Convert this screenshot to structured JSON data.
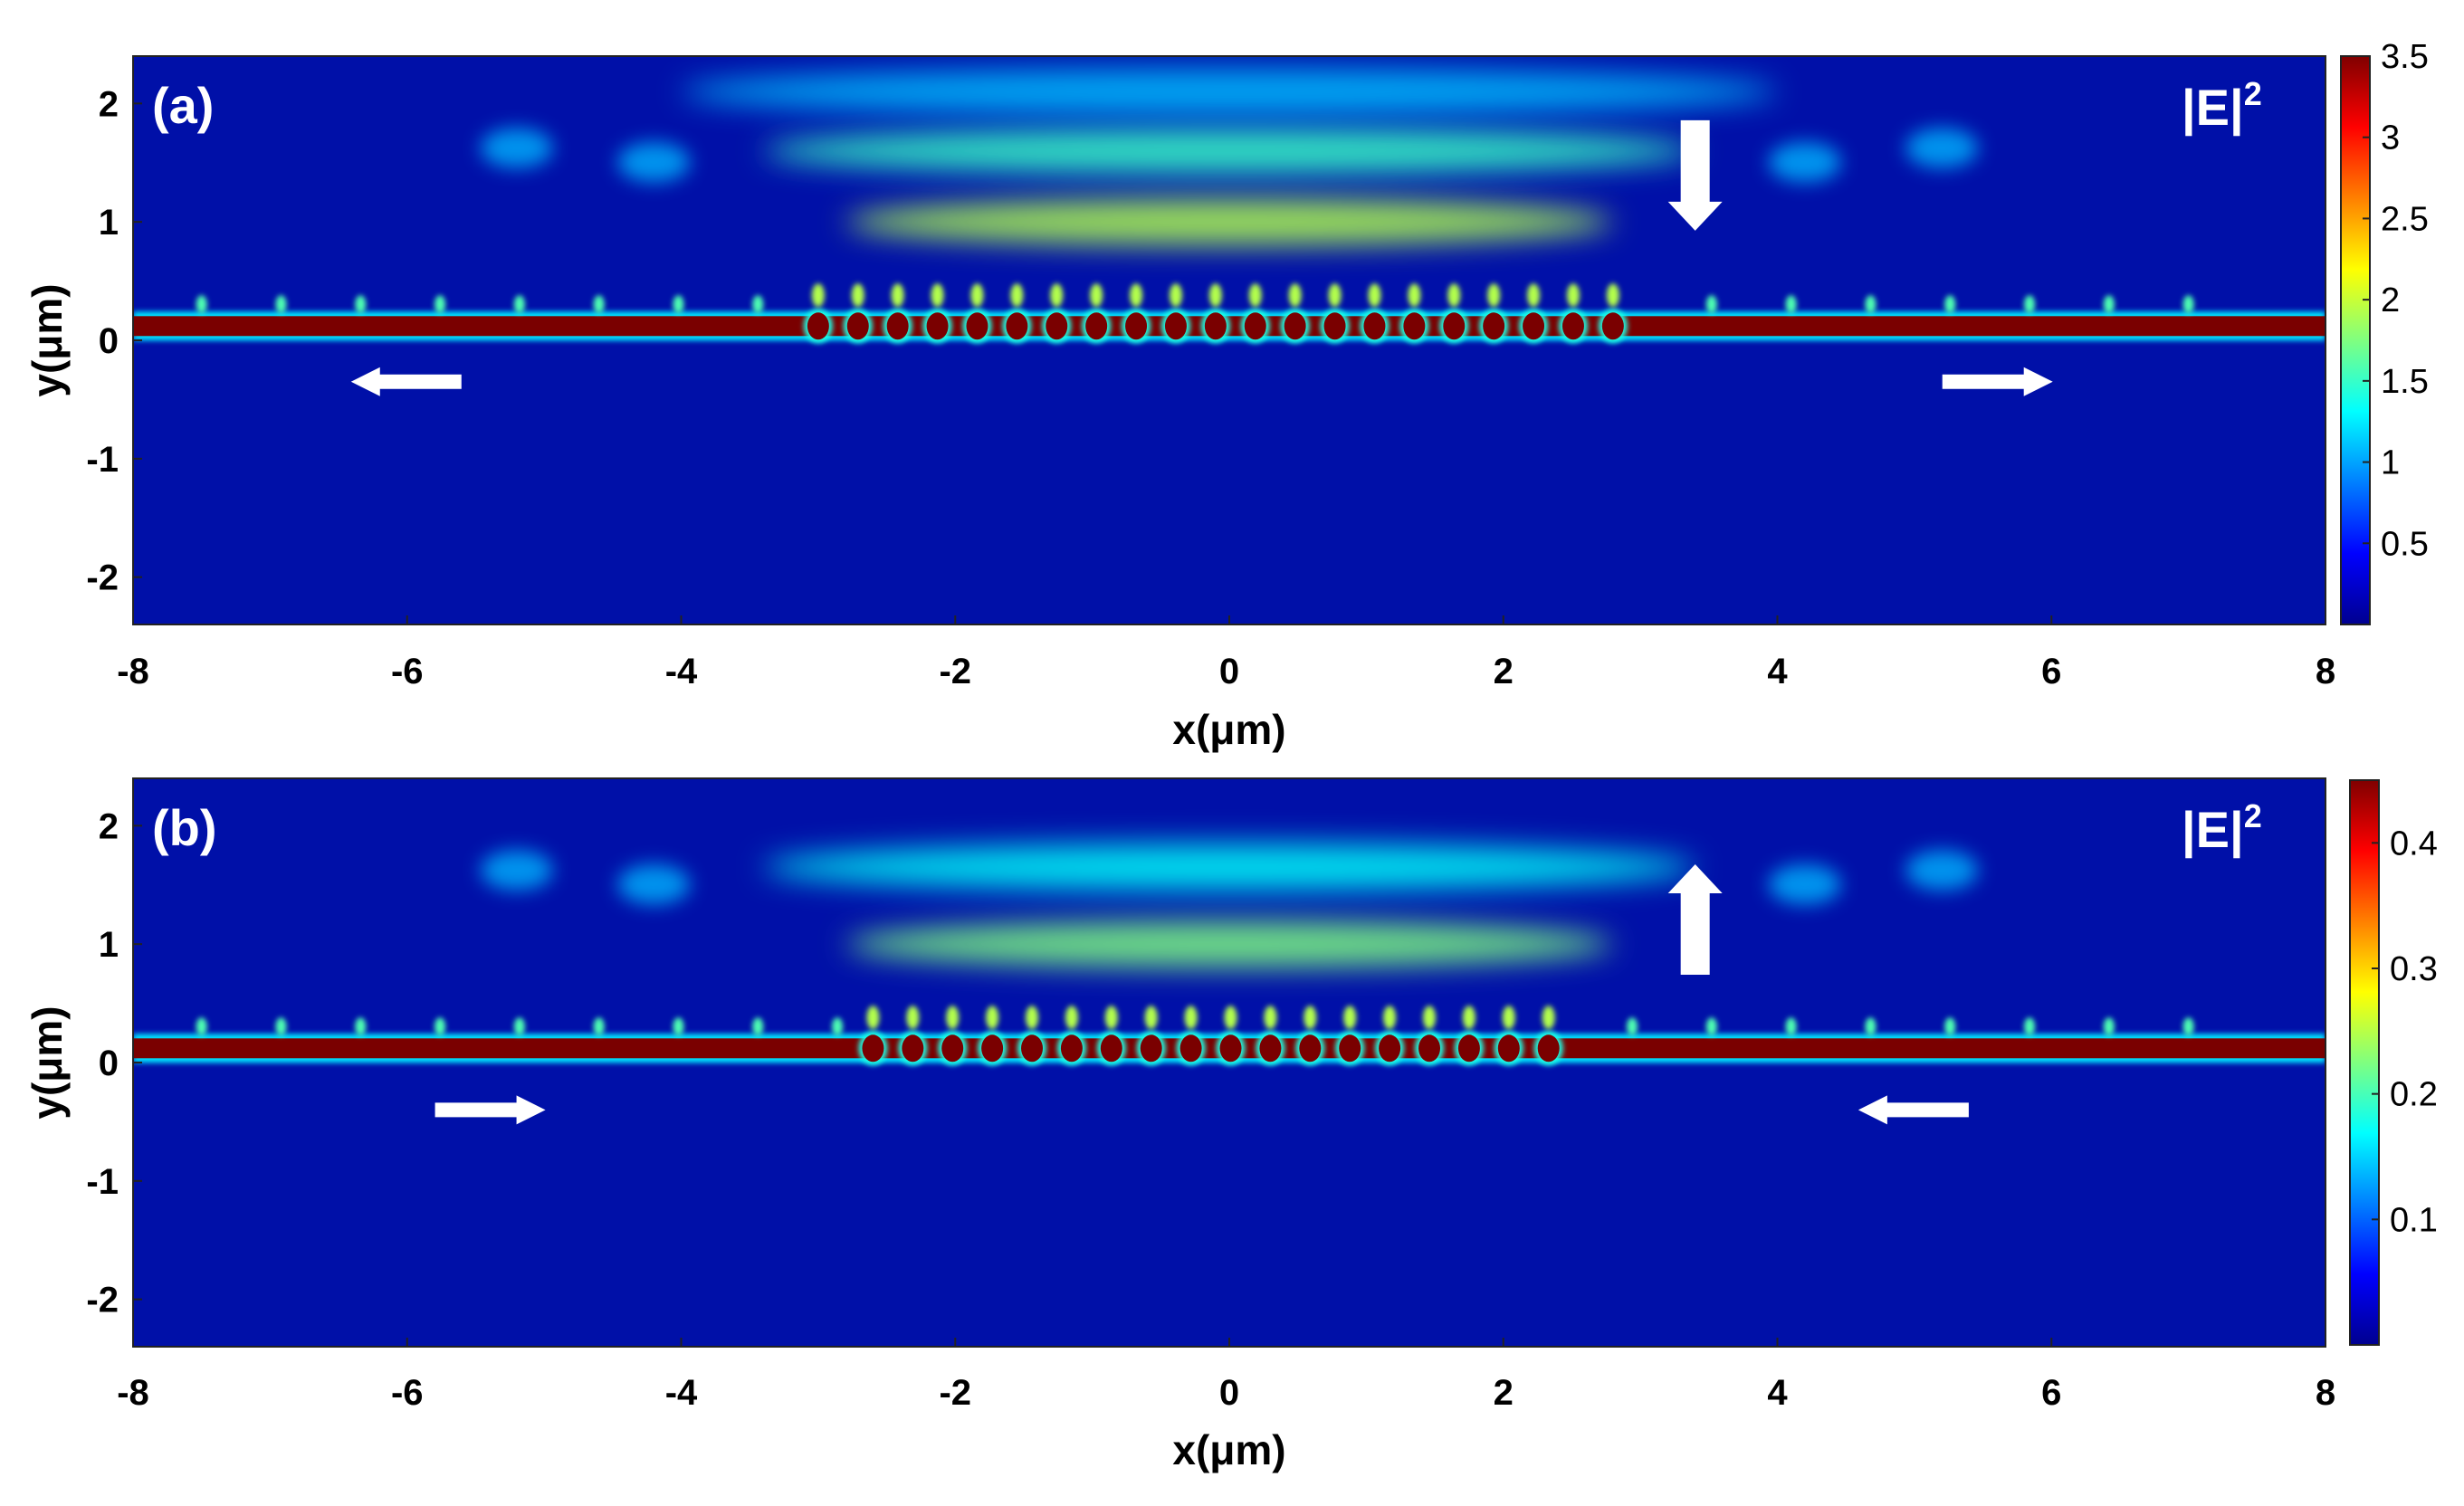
{
  "chart_data": [
    {
      "type": "heatmap",
      "panel_label": "(a)",
      "colorbar_label": "|E|",
      "colorbar_label_superscript": "2",
      "xlabel": "x(μm)",
      "ylabel": "y(μm)",
      "xlim": [
        -8,
        8
      ],
      "ylim": [
        -2.4,
        2.4
      ],
      "xticks": [
        "-8",
        "-6",
        "-4",
        "-2",
        "0",
        "2",
        "4",
        "6",
        "8"
      ],
      "yticks": [
        "-2",
        "-1",
        "0",
        "1",
        "2"
      ],
      "clim": [
        0,
        3.5
      ],
      "colorbar_ticks": [
        "0.5",
        "1",
        "1.5",
        "2",
        "2.5",
        "3",
        "3.5"
      ],
      "colormap": "jet",
      "features": {
        "waveguide_y": 0.12,
        "grating_span_x": [
          -3.0,
          3.0
        ],
        "grating_period": 0.29,
        "beam_y": [
          1.0,
          1.6,
          2.1
        ],
        "beam_peak_relative": 0.55
      },
      "arrows": [
        {
          "direction": "down",
          "x": 3.4,
          "y": 1.4
        },
        {
          "direction": "left",
          "x": -6.0,
          "y": -0.35
        },
        {
          "direction": "right",
          "x": 5.6,
          "y": -0.35
        }
      ]
    },
    {
      "type": "heatmap",
      "panel_label": "(b)",
      "colorbar_label": "|E|",
      "colorbar_label_superscript": "2",
      "xlabel": "x(μm)",
      "ylabel": "y(μm)",
      "xlim": [
        -8,
        8
      ],
      "ylim": [
        -2.4,
        2.4
      ],
      "xticks": [
        "-8",
        "-6",
        "-4",
        "-2",
        "0",
        "2",
        "4",
        "6",
        "8"
      ],
      "yticks": [
        "-2",
        "-1",
        "0",
        "1",
        "2"
      ],
      "clim": [
        0,
        0.45
      ],
      "colorbar_ticks": [
        "0.1",
        "0.2",
        "0.3",
        "0.4"
      ],
      "colormap": "jet",
      "features": {
        "waveguide_y": 0.12,
        "grating_span_x": [
          -2.6,
          2.6
        ],
        "grating_period": 0.29,
        "beam_y": [
          1.0,
          1.65
        ],
        "beam_peak_relative": 0.5
      },
      "arrows": [
        {
          "direction": "up",
          "x": 3.4,
          "y": 1.2
        },
        {
          "direction": "right",
          "x": -5.4,
          "y": -0.4
        },
        {
          "direction": "left",
          "x": 5.0,
          "y": -0.4
        }
      ]
    }
  ]
}
